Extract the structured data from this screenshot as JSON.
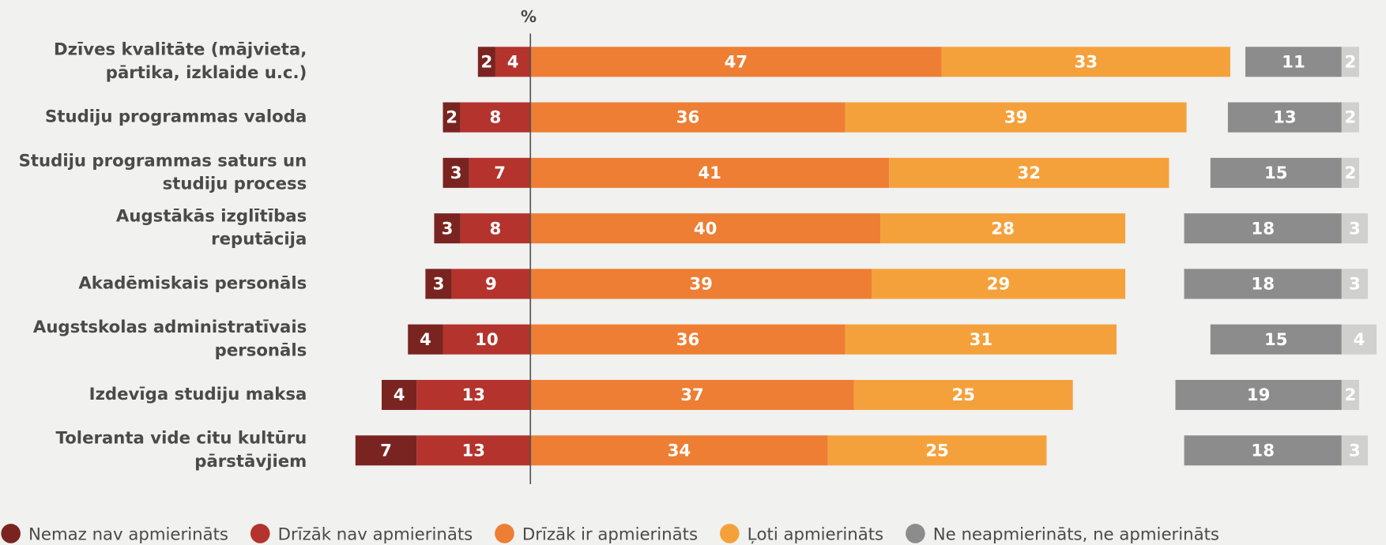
{
  "chart_data": {
    "type": "diverging_bar",
    "axis_label": "%",
    "categories": [
      [
        "Dzīves kvalitāte (mājvieta,",
        "pārtika, izklaide u.c.)"
      ],
      [
        "Studiju programmas valoda"
      ],
      [
        "Studiju programmas saturs un",
        "studiju process"
      ],
      [
        "Augstākās izglītības",
        "reputācija"
      ],
      [
        "Akadēmiskais personāls"
      ],
      [
        "Augstskolas administratīvais",
        "personāls"
      ],
      [
        "Izdevīga studiju maksa"
      ],
      [
        "Toleranta vide citu kultūru",
        "pārstāvjiem"
      ]
    ],
    "series": [
      {
        "name": "Nemaz nav apmierināts",
        "color": "#7a2421",
        "values": [
          2,
          2,
          3,
          3,
          3,
          4,
          4,
          7
        ]
      },
      {
        "name": "Drīzāk nav apmierināts",
        "color": "#b4332d",
        "values": [
          4,
          8,
          7,
          8,
          9,
          10,
          13,
          13
        ]
      },
      {
        "name": "Drīzāk ir apmierināts",
        "color": "#ee7e33",
        "values": [
          47,
          36,
          41,
          40,
          39,
          36,
          37,
          34
        ]
      },
      {
        "name": "Ļoti apmierināts",
        "color": "#f5a13b",
        "values": [
          33,
          39,
          32,
          28,
          29,
          31,
          25,
          25
        ]
      },
      {
        "name": "Ne neapmierināts, ne apmierināts",
        "color": "#8c8c8c",
        "values": [
          11,
          13,
          15,
          18,
          18,
          15,
          19,
          18
        ]
      },
      {
        "color": "#d0d0ce",
        "values": [
          2,
          2,
          2,
          3,
          3,
          4,
          2,
          3
        ]
      }
    ]
  }
}
